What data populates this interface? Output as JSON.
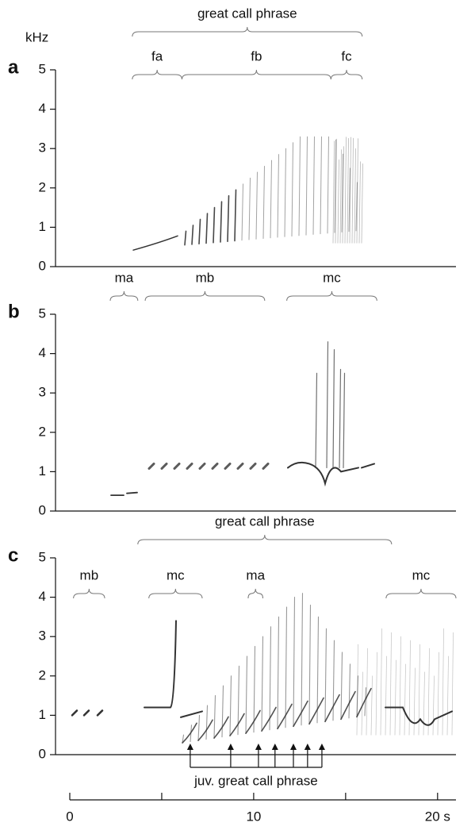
{
  "y_unit": "kHz",
  "panels": [
    {
      "label": "a",
      "ylim": [
        0,
        5
      ],
      "yticks": [
        0,
        1,
        2,
        3,
        4,
        5
      ],
      "brackets": [
        {
          "label": "great call phrase",
          "start": 3.4,
          "end": 15.9,
          "level": 1
        },
        {
          "label": "fa",
          "start": 3.4,
          "end": 6.1,
          "level": 0
        },
        {
          "label": "fb",
          "start": 6.1,
          "end": 14.2,
          "level": 0
        },
        {
          "label": "fc",
          "start": 14.2,
          "end": 15.9,
          "level": 0
        }
      ]
    },
    {
      "label": "b",
      "ylim": [
        0,
        5
      ],
      "yticks": [
        0,
        1,
        2,
        3,
        4,
        5
      ],
      "brackets": [
        {
          "label": "ma",
          "start": 2.2,
          "end": 3.7,
          "level": 0
        },
        {
          "label": "mb",
          "start": 4.1,
          "end": 10.6,
          "level": 0
        },
        {
          "label": "mc",
          "start": 11.8,
          "end": 16.7,
          "level": 0
        }
      ]
    },
    {
      "label": "c",
      "ylim": [
        0,
        5
      ],
      "yticks": [
        0,
        1,
        2,
        3,
        4,
        5
      ],
      "brackets": [
        {
          "label": "great call phrase",
          "start": 3.7,
          "end": 17.5,
          "level": 1
        },
        {
          "label": "mb",
          "start": 0.2,
          "end": 1.9,
          "level": 0
        },
        {
          "label": "mc",
          "start": 4.3,
          "end": 7.2,
          "level": 0
        },
        {
          "label": "ma",
          "start": 9.7,
          "end": 10.5,
          "level": 0
        },
        {
          "label": "mc",
          "start": 17.2,
          "end": 21.0,
          "level": 0
        }
      ],
      "arrows_label": "juv. great call phrase",
      "arrows": [
        6.55,
        8.75,
        10.26,
        11.16,
        12.16,
        12.93,
        13.71
      ]
    }
  ],
  "x_axis": {
    "xlim": [
      0,
      21
    ],
    "xticks": [
      0,
      10,
      {
        "value": 20,
        "label": "20 s"
      }
    ],
    "minor_xticks": [
      5,
      15
    ]
  }
}
